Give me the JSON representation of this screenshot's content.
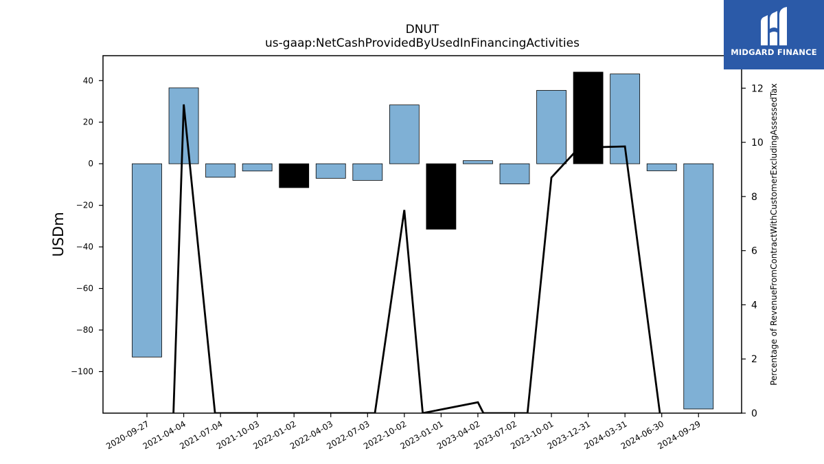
{
  "chart_data": {
    "type": "bar",
    "title": "DNUT",
    "subtitle": "us-gaap:NetCashProvidedByUsedInFinancingActivities",
    "ylabel": "USDm",
    "y2label": "Percentage of RevenueFromContractWithCustomerExcludingAssessedTax",
    "ylim": [
      -120,
      52
    ],
    "y2lim": [
      0,
      13.2
    ],
    "yticks": [
      -100,
      -80,
      -60,
      -40,
      -20,
      0,
      20,
      40
    ],
    "y2ticks": [
      0,
      2,
      4,
      6,
      8,
      10,
      12
    ],
    "categories": [
      "2020-09-27",
      "2021-04-04",
      "2021-07-04",
      "2021-10-03",
      "2022-01-02",
      "2022-04-03",
      "2022-07-03",
      "2022-10-02",
      "2023-01-01",
      "2023-04-02",
      "2023-07-02",
      "2023-10-01",
      "2023-12-31",
      "2024-03-31",
      "2024-06-30",
      "2024-09-29"
    ],
    "values": [
      -93,
      36.5,
      -6.5,
      -3.5,
      -11.5,
      -7,
      -8,
      28.3,
      -31.5,
      1.5,
      -9.7,
      35.3,
      44.1,
      43.2,
      -3.4,
      -118
    ],
    "bar_colors": [
      "#7fb0d5",
      "#7fb0d5",
      "#7fb0d5",
      "#7fb0d5",
      "#000000",
      "#7fb0d5",
      "#7fb0d5",
      "#7fb0d5",
      "#000000",
      "#7fb0d5",
      "#7fb0d5",
      "#7fb0d5",
      "#000000",
      "#7fb0d5",
      "#7fb0d5",
      "#7fb0d5"
    ],
    "line_series": {
      "points": [
        {
          "x": 0.72,
          "y": 0
        },
        {
          "x": 1.0,
          "y": 11.4
        },
        {
          "x": 1.85,
          "y": 0
        },
        {
          "x": 6.2,
          "y": 0
        },
        {
          "x": 7.0,
          "y": 7.5
        },
        {
          "x": 7.5,
          "y": 0
        },
        {
          "x": 9.0,
          "y": 0.4
        },
        {
          "x": 9.15,
          "y": 0
        },
        {
          "x": 10.35,
          "y": 0
        },
        {
          "x": 11.0,
          "y": 8.7
        },
        {
          "x": 11.75,
          "y": 9.8
        },
        {
          "x": 13.0,
          "y": 9.85
        },
        {
          "x": 13.95,
          "y": 0
        }
      ],
      "color": "#000000"
    },
    "grid": false
  },
  "logo": {
    "text": "MIDGARD FINANCE",
    "background": "#2b5aa8"
  }
}
